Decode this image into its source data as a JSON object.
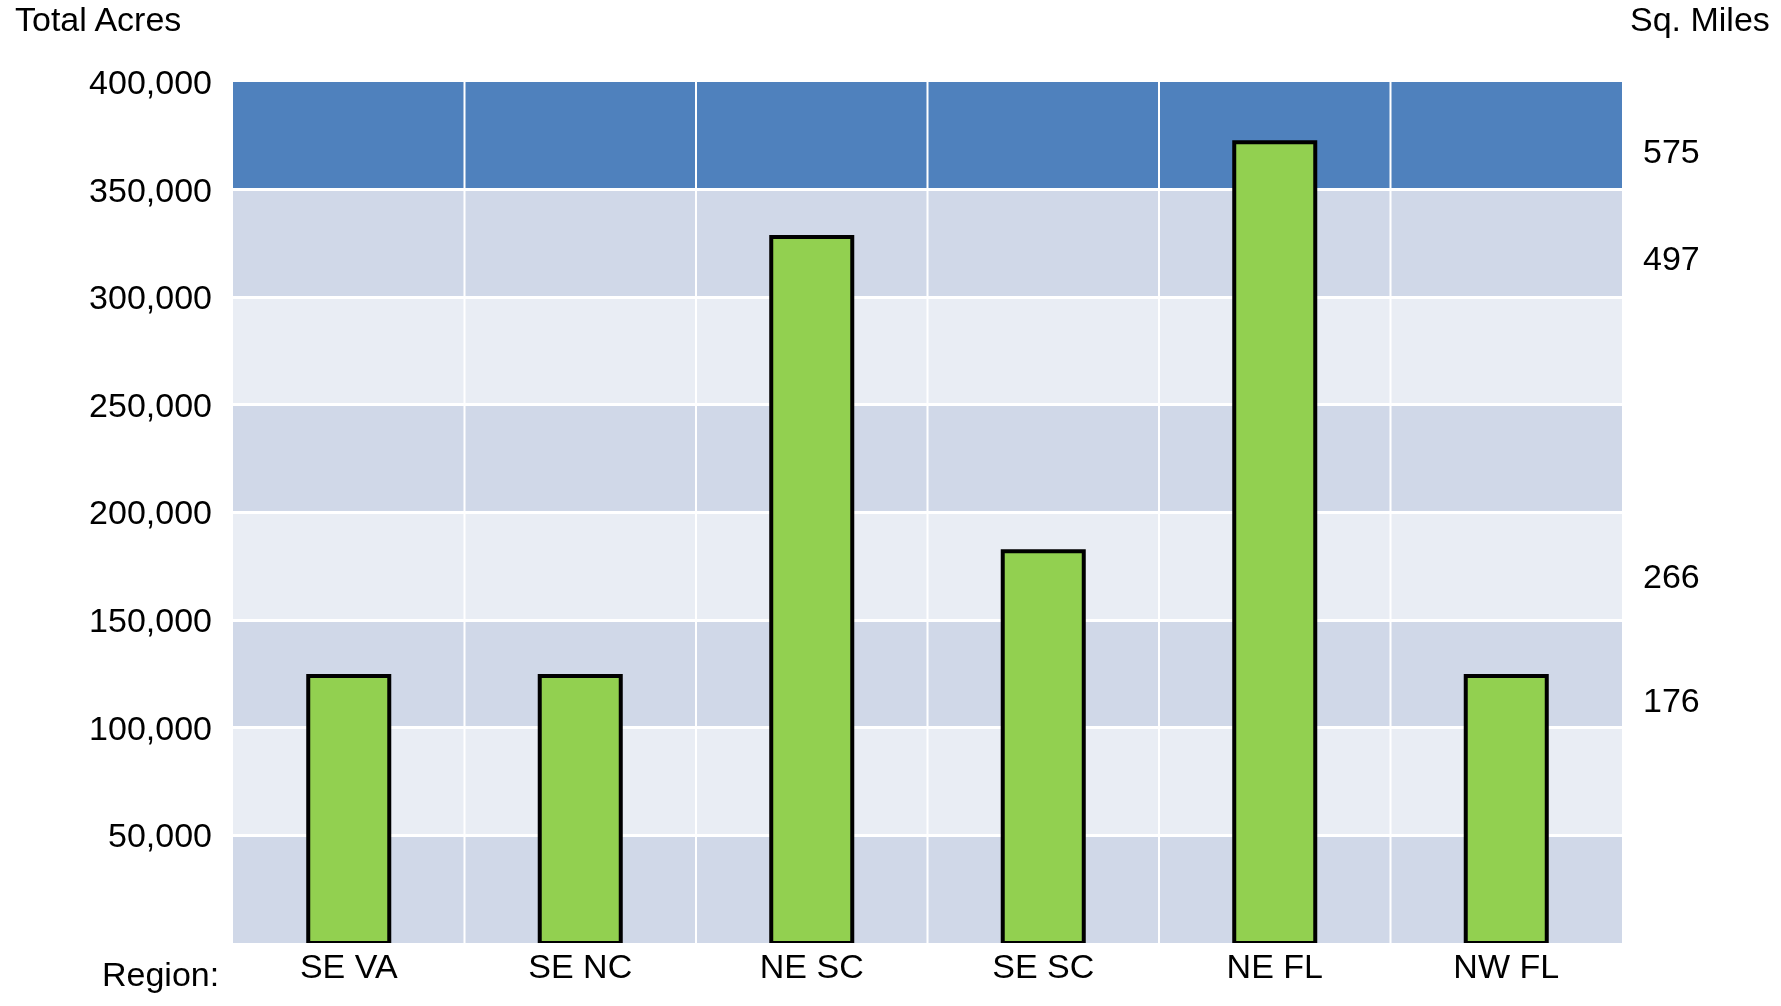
{
  "chart_data": {
    "type": "bar",
    "ylabel": "Total Acres",
    "y2label": "Sq. Miles",
    "xlabel": "Region:",
    "categories": [
      "SE VA",
      "SE NC",
      "NE SC",
      "SE SC",
      "NE FL",
      "NW FL"
    ],
    "series": [
      {
        "color": "#92d050",
        "values": [
          124000,
          124000,
          328000,
          182000,
          372000,
          124000
        ]
      }
    ],
    "ylim": [
      0,
      400000
    ],
    "yticks": [
      {
        "value": 50000,
        "label": "50,000"
      },
      {
        "value": 100000,
        "label": "100,000"
      },
      {
        "value": 150000,
        "label": "150,000"
      },
      {
        "value": 200000,
        "label": "200,000"
      },
      {
        "value": 250000,
        "label": "250,000"
      },
      {
        "value": 300000,
        "label": "300,000"
      },
      {
        "value": 350000,
        "label": "350,000"
      },
      {
        "value": 400000,
        "label": "400,000"
      }
    ],
    "y2lim": [
      0,
      625
    ],
    "y2ticks": [
      176,
      266,
      497,
      575
    ],
    "bands": [
      {
        "axis": "y",
        "from": 0,
        "to": 50000,
        "color": "#d0d8e8"
      },
      {
        "axis": "y",
        "from": 50000,
        "to": 100000,
        "color": "#e9edf4"
      },
      {
        "axis": "y",
        "from": 100000,
        "to": 150000,
        "color": "#d0d8e8"
      },
      {
        "axis": "y",
        "from": 150000,
        "to": 200000,
        "color": "#e9edf4"
      },
      {
        "axis": "y",
        "from": 200000,
        "to": 250000,
        "color": "#d0d8e8"
      },
      {
        "axis": "y",
        "from": 250000,
        "to": 300000,
        "color": "#e9edf4"
      },
      {
        "axis": "y",
        "from": 300000,
        "to": 350000,
        "color": "#d0d8e8"
      },
      {
        "axis": "y",
        "from": 350000,
        "to": 400000,
        "color": "#4f81bd"
      }
    ],
    "grid": true
  }
}
